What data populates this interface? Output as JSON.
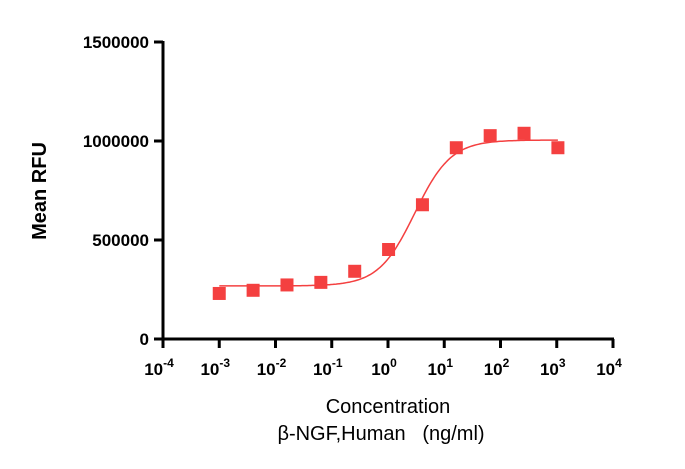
{
  "chart_data": {
    "type": "scatter",
    "title": "",
    "xlabel": "Concentration",
    "xlabel_line2": "β-NGF,Human   (ng/ml)",
    "ylabel": "Mean RFU",
    "xscale": "log10",
    "xlim": [
      0.0001,
      10000
    ],
    "ylim": [
      0,
      1500000
    ],
    "x_ticks": [
      {
        "base": "10",
        "exp": "-4"
      },
      {
        "base": "10",
        "exp": "-3"
      },
      {
        "base": "10",
        "exp": "-2"
      },
      {
        "base": "10",
        "exp": "-1"
      },
      {
        "base": "10",
        "exp": "0"
      },
      {
        "base": "10",
        "exp": "1"
      },
      {
        "base": "10",
        "exp": "2"
      },
      {
        "base": "10",
        "exp": "3"
      },
      {
        "base": "10",
        "exp": "4"
      }
    ],
    "y_ticks": [
      "0",
      "500000",
      "1000000",
      "1500000"
    ],
    "grid": false,
    "series": [
      {
        "name": "β-NGF,Human",
        "color": "#f44040",
        "marker": "square",
        "x": [
          0.001,
          0.004,
          0.016,
          0.064,
          0.256,
          1.024,
          4.096,
          16.384,
          65.536,
          262.144,
          1048.576
        ],
        "y": [
          230000,
          246000,
          273000,
          286000,
          342000,
          452000,
          678000,
          966000,
          1027000,
          1039000,
          966000
        ],
        "fit": {
          "model": "4PL",
          "bottom": 268000,
          "top": 1005000,
          "ec50": 3.0,
          "hill": 1.35
        }
      }
    ]
  }
}
